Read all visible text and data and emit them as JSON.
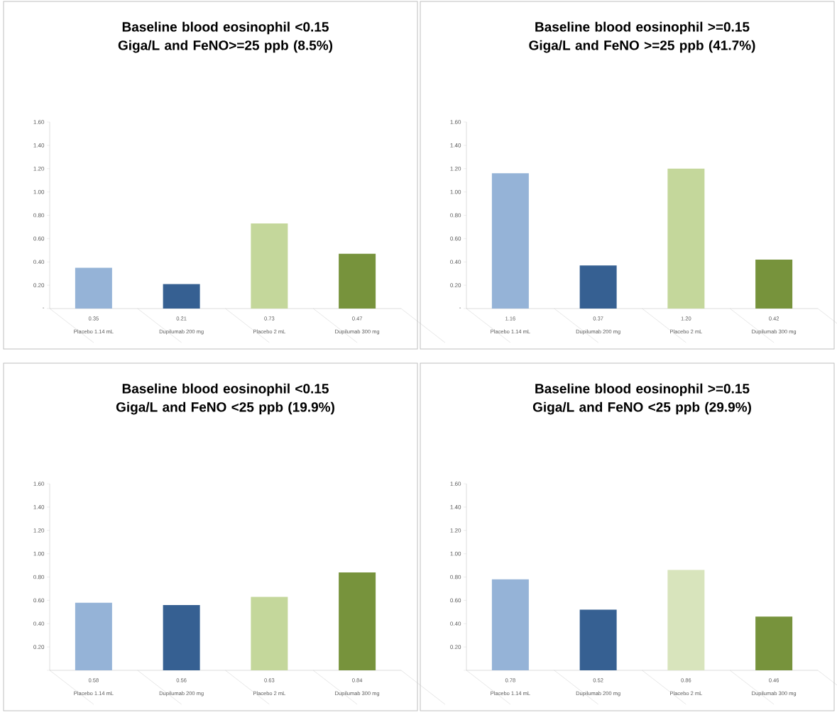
{
  "chart_data": [
    {
      "type": "bar",
      "title": "Baseline blood eosinophil <0.15 Giga/L and FeNO>=25 ppb (8.5%)",
      "categories": [
        "Placebo 1.14 mL",
        "Dupilumab 200 mg",
        "Placebo 2 mL",
        "Dupilumab 300 mg"
      ],
      "values": [
        0.35,
        0.21,
        0.73,
        0.47
      ],
      "value_labels": [
        "0.35",
        "0.21",
        "0.73",
        "0.47"
      ],
      "colors": [
        "#95b3d7",
        "#366092",
        "#c4d79b",
        "#77933c"
      ],
      "ylim": [
        0,
        1.6
      ],
      "yticks": [
        {
          "value": 0,
          "label": "-"
        },
        {
          "value": 0.2,
          "label": "0.20"
        },
        {
          "value": 0.4,
          "label": "0.40"
        },
        {
          "value": 0.6,
          "label": "0.60"
        },
        {
          "value": 0.8,
          "label": "0.80"
        },
        {
          "value": 1.0,
          "label": "1.00"
        },
        {
          "value": 1.2,
          "label": "1.20"
        },
        {
          "value": 1.4,
          "label": "1.40"
        },
        {
          "value": 1.6,
          "label": "1.60"
        }
      ]
    },
    {
      "type": "bar",
      "title": "Baseline blood eosinophil >=0.15 Giga/L and FeNO >=25 ppb (41.7%)",
      "categories": [
        "Placebo 1.14 mL",
        "Dupilumab 200 mg",
        "Placebo 2 mL",
        "Dupilumab 300 mg"
      ],
      "values": [
        1.16,
        0.37,
        1.2,
        0.42
      ],
      "value_labels": [
        "1.16",
        "0.37",
        "1.20",
        "0.42"
      ],
      "colors": [
        "#95b3d7",
        "#366092",
        "#c4d79b",
        "#77933c"
      ],
      "ylim": [
        0,
        1.6
      ],
      "yticks": [
        {
          "value": 0,
          "label": "-"
        },
        {
          "value": 0.2,
          "label": "0.20"
        },
        {
          "value": 0.4,
          "label": "0.40"
        },
        {
          "value": 0.6,
          "label": "0.60"
        },
        {
          "value": 0.8,
          "label": "0.80"
        },
        {
          "value": 1.0,
          "label": "1.00"
        },
        {
          "value": 1.2,
          "label": "1.20"
        },
        {
          "value": 1.4,
          "label": "1.40"
        },
        {
          "value": 1.6,
          "label": "1.60"
        }
      ]
    },
    {
      "type": "bar",
      "title": "Baseline blood eosinophil <0.15 Giga/L and FeNO <25 ppb (19.9%)",
      "categories": [
        "Placebo 1.14 mL",
        "Dupilumab 200 mg",
        "Placebo 2 mL",
        "Dupilumab 300 mg"
      ],
      "values": [
        0.58,
        0.56,
        0.63,
        0.84
      ],
      "value_labels": [
        "0.58",
        "0.56",
        "0.63",
        "0.84"
      ],
      "colors": [
        "#95b3d7",
        "#366092",
        "#c4d79b",
        "#77933c"
      ],
      "ylim": [
        0,
        1.6
      ],
      "yticks": [
        {
          "value": 0,
          "label": null
        },
        {
          "value": 0.2,
          "label": "0.20"
        },
        {
          "value": 0.4,
          "label": "0.40"
        },
        {
          "value": 0.6,
          "label": "0.60"
        },
        {
          "value": 0.8,
          "label": "0.80"
        },
        {
          "value": 1.0,
          "label": "1.00"
        },
        {
          "value": 1.2,
          "label": "1.20"
        },
        {
          "value": 1.4,
          "label": "1.40"
        },
        {
          "value": 1.6,
          "label": "1.60"
        }
      ]
    },
    {
      "type": "bar",
      "title": "Baseline blood eosinophil >=0.15 Giga/L and FeNO <25 ppb (29.9%)",
      "categories": [
        "Placebo 1.14 mL",
        "Dupilumab 200 mg",
        "Placebo 2 mL",
        "Dupilumab 300 mg"
      ],
      "values": [
        0.78,
        0.52,
        0.86,
        0.46
      ],
      "value_labels": [
        "0.78",
        "0.52",
        "0.86",
        "0.46"
      ],
      "colors": [
        "#95b3d7",
        "#366092",
        "#d8e4bc",
        "#77933c"
      ],
      "ylim": [
        0,
        1.6
      ],
      "yticks": [
        {
          "value": 0,
          "label": null
        },
        {
          "value": 0.2,
          "label": "0.20"
        },
        {
          "value": 0.4,
          "label": "0.40"
        },
        {
          "value": 0.6,
          "label": "0.60"
        },
        {
          "value": 0.8,
          "label": "0.80"
        },
        {
          "value": 1.0,
          "label": "1.00"
        },
        {
          "value": 1.2,
          "label": "1.20"
        },
        {
          "value": 1.4,
          "label": "1.40"
        },
        {
          "value": 1.6,
          "label": "1.60"
        }
      ]
    }
  ]
}
